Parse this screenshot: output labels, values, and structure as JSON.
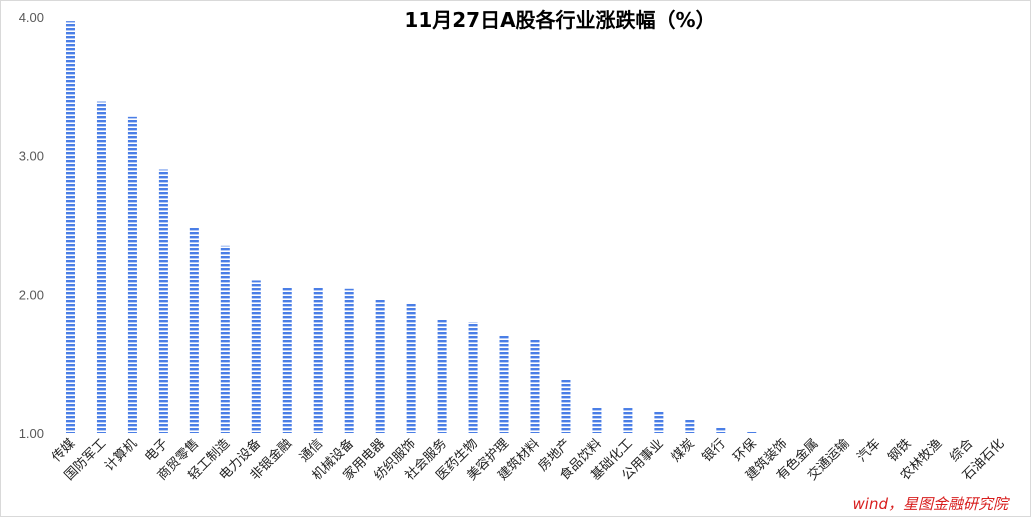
{
  "chart_data": {
    "type": "bar",
    "title": "11月27日A股各行业涨跌幅（%）",
    "xlabel": "",
    "ylabel": "",
    "ylim": [
      1.0,
      4.0
    ],
    "yticks": [
      "1.00",
      "2.00",
      "3.00",
      "4.00"
    ],
    "grid": false,
    "legend": "none",
    "bar_color": "#4a7ee6",
    "bar_style": "horizontal-striped",
    "categories": [
      "传媒",
      "国防军工",
      "计算机",
      "电子",
      "商贸零售",
      "轻工制造",
      "电力设备",
      "非银金融",
      "通信",
      "机械设备",
      "家用电器",
      "纺织服饰",
      "社会服务",
      "医药生物",
      "美容护理",
      "建筑材料",
      "房地产",
      "食品饮料",
      "基础化工",
      "公用事业",
      "煤炭",
      "银行",
      "环保",
      "建筑装饰",
      "有色金属",
      "交通运输",
      "汽车",
      "钢铁",
      "农林牧渔",
      "综合",
      "石油石化"
    ],
    "values": [
      3.97,
      3.39,
      3.28,
      2.9,
      2.48,
      2.35,
      2.1,
      2.05,
      2.05,
      2.04,
      1.97,
      1.94,
      1.82,
      1.8,
      1.71,
      1.68,
      1.39,
      1.19,
      1.18,
      1.16,
      1.1,
      1.04,
      1.01,
      1.0,
      1.0,
      1.0,
      1.0,
      1.0,
      1.0,
      1.0,
      1.0
    ]
  },
  "watermark": "wind，星图金融研究院"
}
